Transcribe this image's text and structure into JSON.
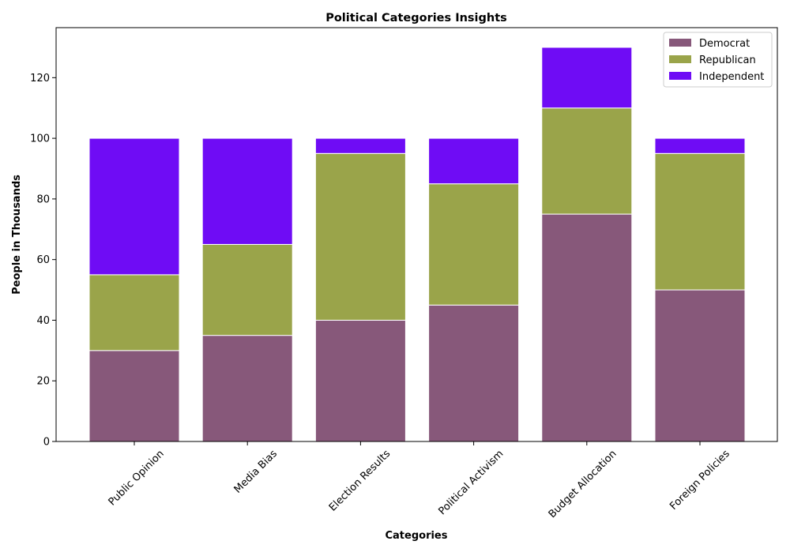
{
  "chart_data": {
    "type": "bar",
    "stacked": true,
    "title": "Political Categories Insights",
    "xlabel": "Categories",
    "ylabel": "People in Thousands",
    "categories": [
      "Public Opinion",
      "Media Bias",
      "Election Results",
      "Political Activism",
      "Budget Allocation",
      "Foreign Policies"
    ],
    "series": [
      {
        "name": "Democrat",
        "color": "#87587a",
        "values": [
          30,
          35,
          40,
          45,
          75,
          50
        ]
      },
      {
        "name": "Republican",
        "color": "#9aa44a",
        "values": [
          25,
          30,
          55,
          40,
          35,
          45
        ]
      },
      {
        "name": "Independent",
        "color": "#6f0cf5",
        "values": [
          45,
          35,
          5,
          15,
          20,
          5
        ]
      }
    ],
    "ylim": [
      0,
      136.5
    ],
    "yticks": [
      0,
      20,
      40,
      60,
      80,
      100,
      120
    ],
    "legend_position": "top-right",
    "grid": false
  }
}
